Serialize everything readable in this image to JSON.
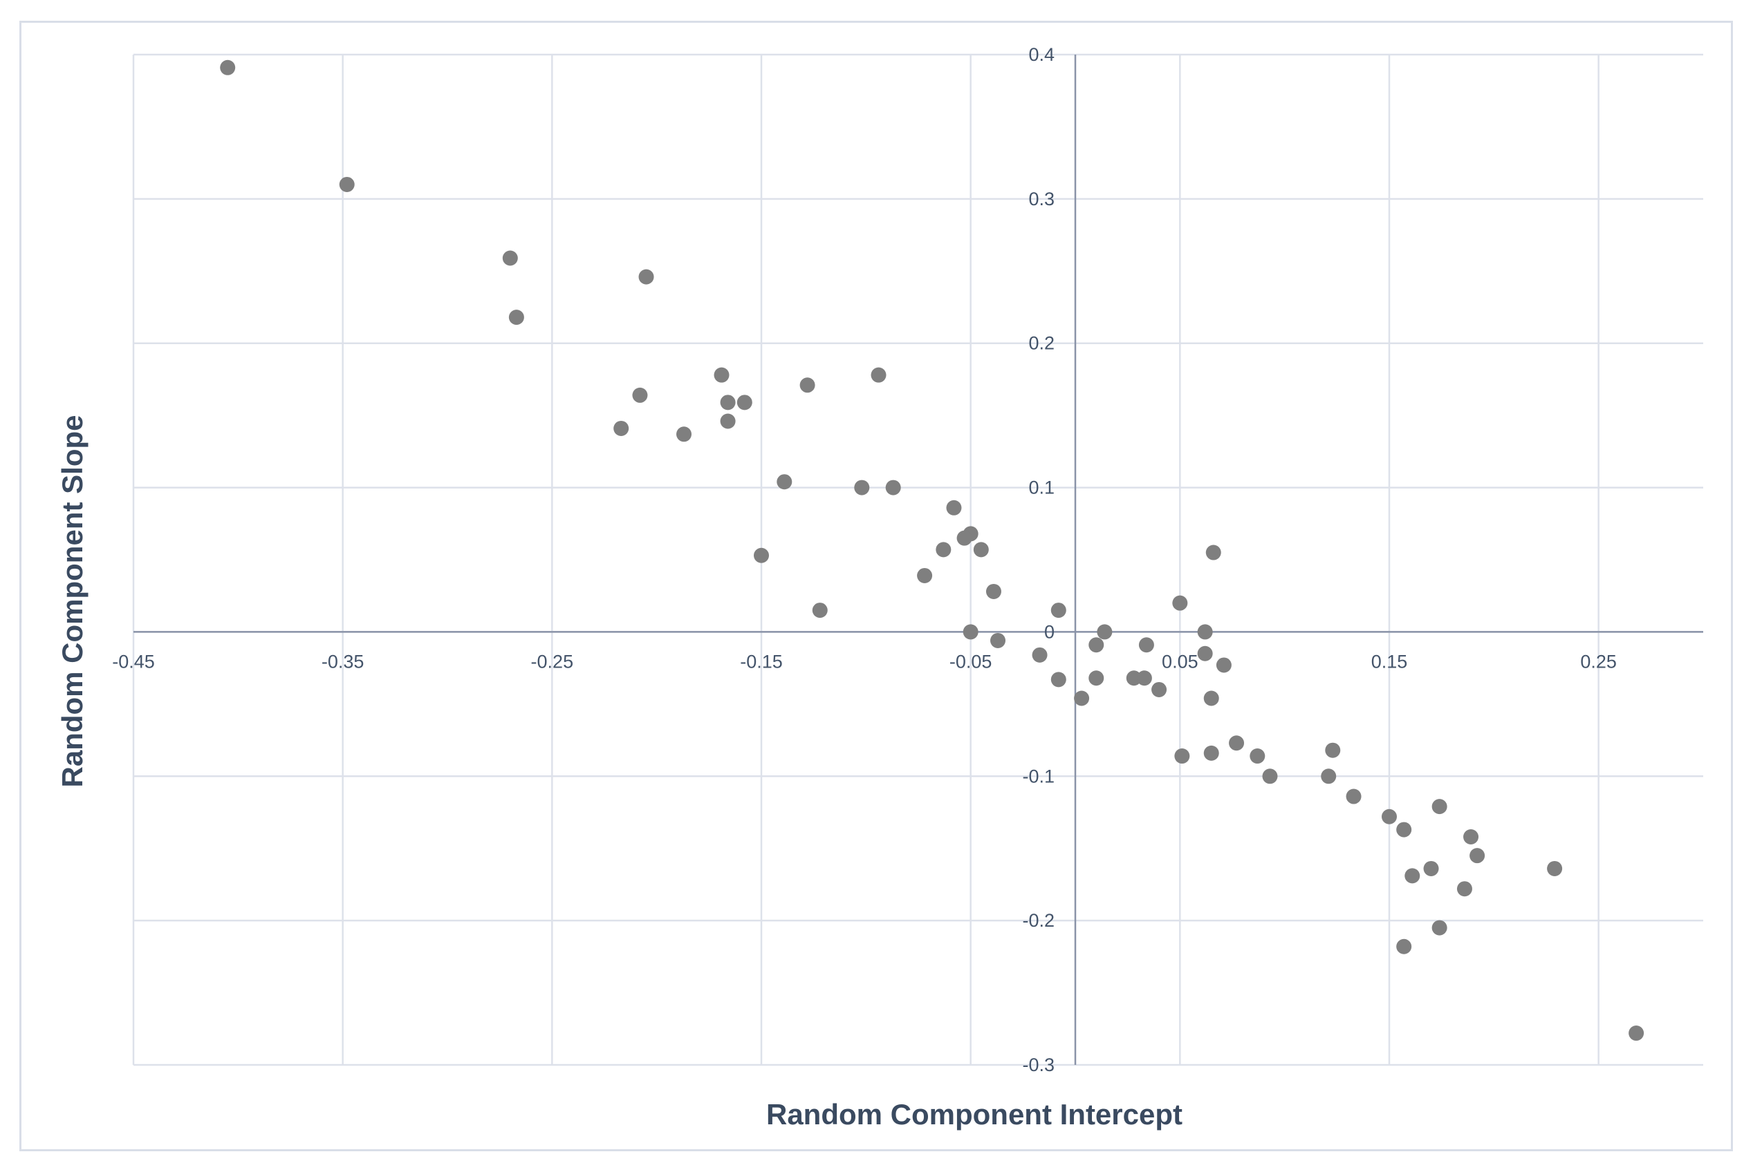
{
  "chart_data": {
    "type": "scatter",
    "title": "",
    "xlabel": "Random Component Intercept",
    "ylabel": "Random Component Slope",
    "xlim": [
      -0.45,
      0.3
    ],
    "ylim": [
      -0.3,
      0.4
    ],
    "x_ticks": [
      -0.45,
      -0.35,
      -0.25,
      -0.15,
      -0.05,
      0.05,
      0.15,
      0.25
    ],
    "x_tick_labels": [
      "-0.45",
      "-0.35",
      "-0.25",
      "-0.15",
      "-0.05",
      "0.05",
      "0.15",
      "0.25"
    ],
    "y_ticks": [
      0.4,
      0.3,
      0.2,
      0.1,
      0,
      -0.1,
      -0.2,
      -0.3
    ],
    "y_tick_labels": [
      "0.4",
      "0.3",
      "0.2",
      "0.1",
      "0",
      "-0.1",
      "-0.2",
      "-0.3"
    ],
    "grid": true,
    "legend": "none",
    "point_color": "#7f7f7f",
    "points": [
      {
        "x": -0.405,
        "y": 0.391
      },
      {
        "x": -0.348,
        "y": 0.31
      },
      {
        "x": -0.27,
        "y": 0.259
      },
      {
        "x": -0.267,
        "y": 0.218
      },
      {
        "x": -0.205,
        "y": 0.246
      },
      {
        "x": -0.208,
        "y": 0.164
      },
      {
        "x": -0.217,
        "y": 0.141
      },
      {
        "x": -0.187,
        "y": 0.137
      },
      {
        "x": -0.169,
        "y": 0.178
      },
      {
        "x": -0.166,
        "y": 0.159
      },
      {
        "x": -0.158,
        "y": 0.159
      },
      {
        "x": -0.166,
        "y": 0.146
      },
      {
        "x": -0.128,
        "y": 0.171
      },
      {
        "x": -0.094,
        "y": 0.178
      },
      {
        "x": -0.139,
        "y": 0.104
      },
      {
        "x": -0.102,
        "y": 0.1
      },
      {
        "x": -0.087,
        "y": 0.1
      },
      {
        "x": -0.15,
        "y": 0.053
      },
      {
        "x": -0.122,
        "y": 0.015
      },
      {
        "x": -0.058,
        "y": 0.086
      },
      {
        "x": -0.05,
        "y": 0.068
      },
      {
        "x": -0.053,
        "y": 0.065
      },
      {
        "x": -0.063,
        "y": 0.057
      },
      {
        "x": -0.045,
        "y": 0.057
      },
      {
        "x": -0.072,
        "y": 0.039
      },
      {
        "x": -0.039,
        "y": 0.028
      },
      {
        "x": -0.05,
        "y": 0.0
      },
      {
        "x": -0.037,
        "y": -0.006
      },
      {
        "x": -0.008,
        "y": 0.015
      },
      {
        "x": -0.017,
        "y": -0.016
      },
      {
        "x": -0.008,
        "y": -0.033
      },
      {
        "x": 0.003,
        "y": -0.046
      },
      {
        "x": 0.01,
        "y": -0.009
      },
      {
        "x": 0.014,
        "y": 0.0
      },
      {
        "x": 0.01,
        "y": -0.032
      },
      {
        "x": 0.028,
        "y": -0.032
      },
      {
        "x": 0.033,
        "y": -0.032
      },
      {
        "x": 0.034,
        "y": -0.009
      },
      {
        "x": 0.04,
        "y": -0.04
      },
      {
        "x": 0.05,
        "y": 0.02
      },
      {
        "x": 0.051,
        "y": -0.086
      },
      {
        "x": 0.062,
        "y": 0.0
      },
      {
        "x": 0.062,
        "y": -0.015
      },
      {
        "x": 0.066,
        "y": 0.055
      },
      {
        "x": 0.071,
        "y": -0.023
      },
      {
        "x": 0.065,
        "y": -0.046
      },
      {
        "x": 0.065,
        "y": -0.084
      },
      {
        "x": 0.077,
        "y": -0.077
      },
      {
        "x": 0.087,
        "y": -0.086
      },
      {
        "x": 0.093,
        "y": -0.1
      },
      {
        "x": 0.123,
        "y": -0.082
      },
      {
        "x": 0.121,
        "y": -0.1
      },
      {
        "x": 0.133,
        "y": -0.114
      },
      {
        "x": 0.15,
        "y": -0.128
      },
      {
        "x": 0.157,
        "y": -0.137
      },
      {
        "x": 0.174,
        "y": -0.121
      },
      {
        "x": 0.189,
        "y": -0.142
      },
      {
        "x": 0.192,
        "y": -0.155
      },
      {
        "x": 0.17,
        "y": -0.164
      },
      {
        "x": 0.161,
        "y": -0.169
      },
      {
        "x": 0.186,
        "y": -0.178
      },
      {
        "x": 0.174,
        "y": -0.205
      },
      {
        "x": 0.157,
        "y": -0.218
      },
      {
        "x": 0.229,
        "y": -0.164
      },
      {
        "x": 0.268,
        "y": -0.278
      }
    ]
  }
}
